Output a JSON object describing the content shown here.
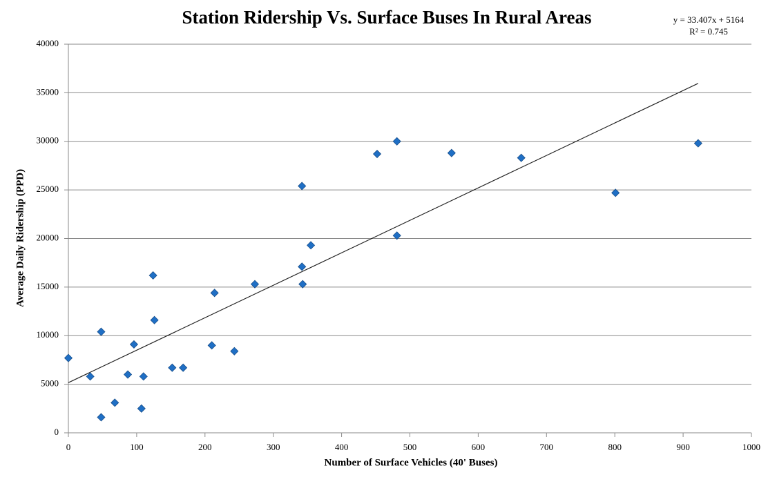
{
  "chart_data": {
    "type": "scatter",
    "title": "Station Ridership Vs. Surface Buses In Rural Areas",
    "x_label": "Number of Surface Vehicles (40' Buses)",
    "y_label": "Average Daily Ridership (PPD)",
    "color": "#1f6fc5",
    "grid": true,
    "xlim": [
      0,
      1000
    ],
    "ylim": [
      0,
      40000
    ],
    "xticks": [
      0,
      100,
      200,
      300,
      400,
      500,
      600,
      700,
      800,
      900,
      1000
    ],
    "yticks": [
      0,
      5000,
      10000,
      15000,
      20000,
      25000,
      30000,
      35000,
      40000
    ],
    "x": [
      0,
      32,
      48,
      48,
      68,
      87,
      96,
      107,
      110,
      124,
      126,
      152,
      168,
      210,
      214,
      243,
      273,
      342,
      342,
      343,
      355,
      452,
      481,
      481,
      561,
      663,
      801,
      922
    ],
    "values": [
      7700,
      5800,
      1600,
      10400,
      3100,
      6000,
      9100,
      2500,
      5800,
      16200,
      11600,
      6700,
      6700,
      9000,
      14400,
      8400,
      15300,
      25400,
      17100,
      15300,
      19300,
      28700,
      30000,
      20300,
      28800,
      28300,
      24700,
      29800
    ],
    "trendline": {
      "equation": "y = 33.407x + 5164",
      "r2": "R² = 0.745",
      "slope": 33.407,
      "intercept": 5164
    }
  }
}
